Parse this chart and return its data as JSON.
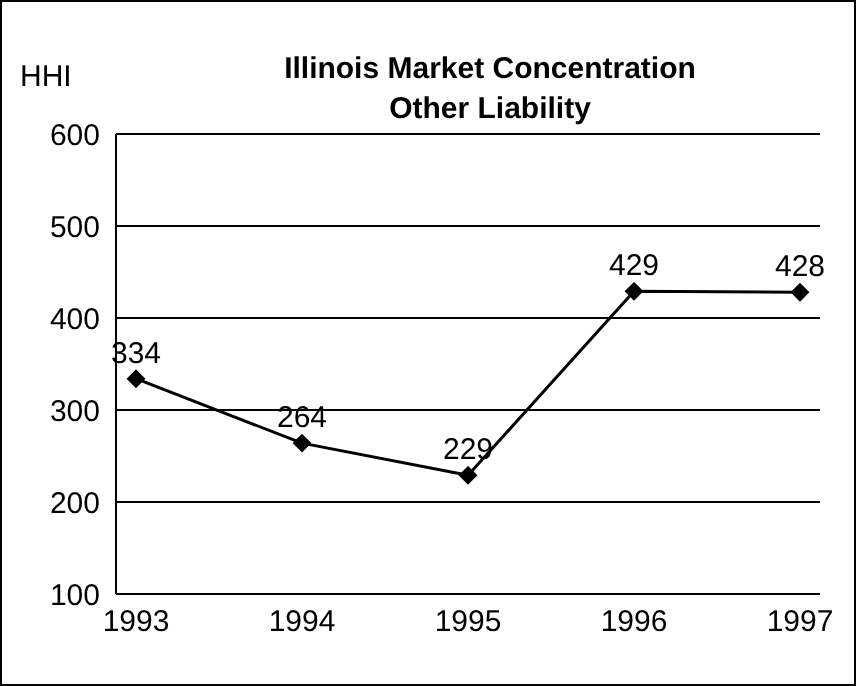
{
  "chart_data": {
    "type": "line",
    "title": "Illinois Market Concentration",
    "subtitle": "Other Liability",
    "ylabel": "HHI",
    "categories": [
      "1993",
      "1994",
      "1995",
      "1996",
      "1997"
    ],
    "series": [
      {
        "color": "#000000",
        "values": [
          334,
          264,
          229,
          429,
          428
        ]
      }
    ],
    "ylim": [
      100,
      600
    ],
    "yticks": [
      100,
      200,
      300,
      400,
      500,
      600
    ],
    "grid": "y",
    "marker": "diamond",
    "line_style": "solid",
    "data_labels": true
  }
}
